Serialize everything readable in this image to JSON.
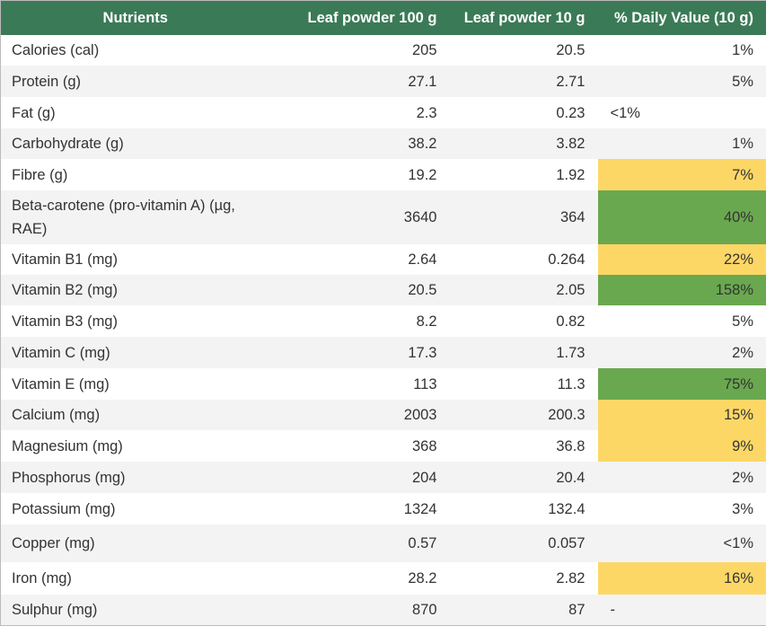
{
  "table": {
    "header": [
      "Nutrients",
      "Leaf powder 100 g",
      "Leaf powder 10 g",
      "% Daily Value (10 g)"
    ],
    "rows": [
      [
        "Calories (cal)",
        "205",
        "20.5",
        "1%"
      ],
      [
        "Protein (g)",
        "27.1",
        "2.71",
        "5%"
      ],
      [
        "Fat (g)",
        "2.3",
        "0.23",
        "<1%"
      ],
      [
        "Carbohydrate (g)",
        "38.2",
        "3.82",
        "1%"
      ],
      [
        "Fibre (g)",
        "19.2",
        "1.92",
        "7%"
      ],
      [
        "Beta-carotene (pro-vitamin A) (µg, RAE)",
        "3640",
        "364",
        "40%"
      ],
      [
        "Vitamin B1 (mg)",
        "2.64",
        "0.264",
        "22%"
      ],
      [
        "Vitamin B2 (mg)",
        "20.5",
        "2.05",
        "158%"
      ],
      [
        "Vitamin B3 (mg)",
        "8.2",
        "0.82",
        "5%"
      ],
      [
        "Vitamin C (mg)",
        "17.3",
        "1.73",
        "2%"
      ],
      [
        "Vitamin E (mg)",
        "113",
        "11.3",
        "75%"
      ],
      [
        "Calcium (mg)",
        "2003",
        "200.3",
        "15%"
      ],
      [
        "Magnesium (mg)",
        "368",
        "36.8",
        "9%"
      ],
      [
        "Phosphorus (mg)",
        "204",
        "20.4",
        "2%"
      ],
      [
        "Potassium (mg)",
        "1324",
        "132.4",
        "3%"
      ],
      [
        "Copper (mg)",
        "0.57",
        "0.057",
        "<1%"
      ],
      [
        "Iron (mg)",
        "28.2",
        "2.82",
        "16%"
      ],
      [
        "Sulphur (mg)",
        "870",
        "87",
        "-"
      ]
    ],
    "highlight_colors": [
      null,
      null,
      null,
      null,
      "#fdd766",
      "#6aa84f",
      "#fdd766",
      "#6aa84f",
      null,
      null,
      "#6aa84f",
      "#fdd766",
      "#fdd766",
      null,
      null,
      null,
      "#fdd766",
      null
    ]
  }
}
